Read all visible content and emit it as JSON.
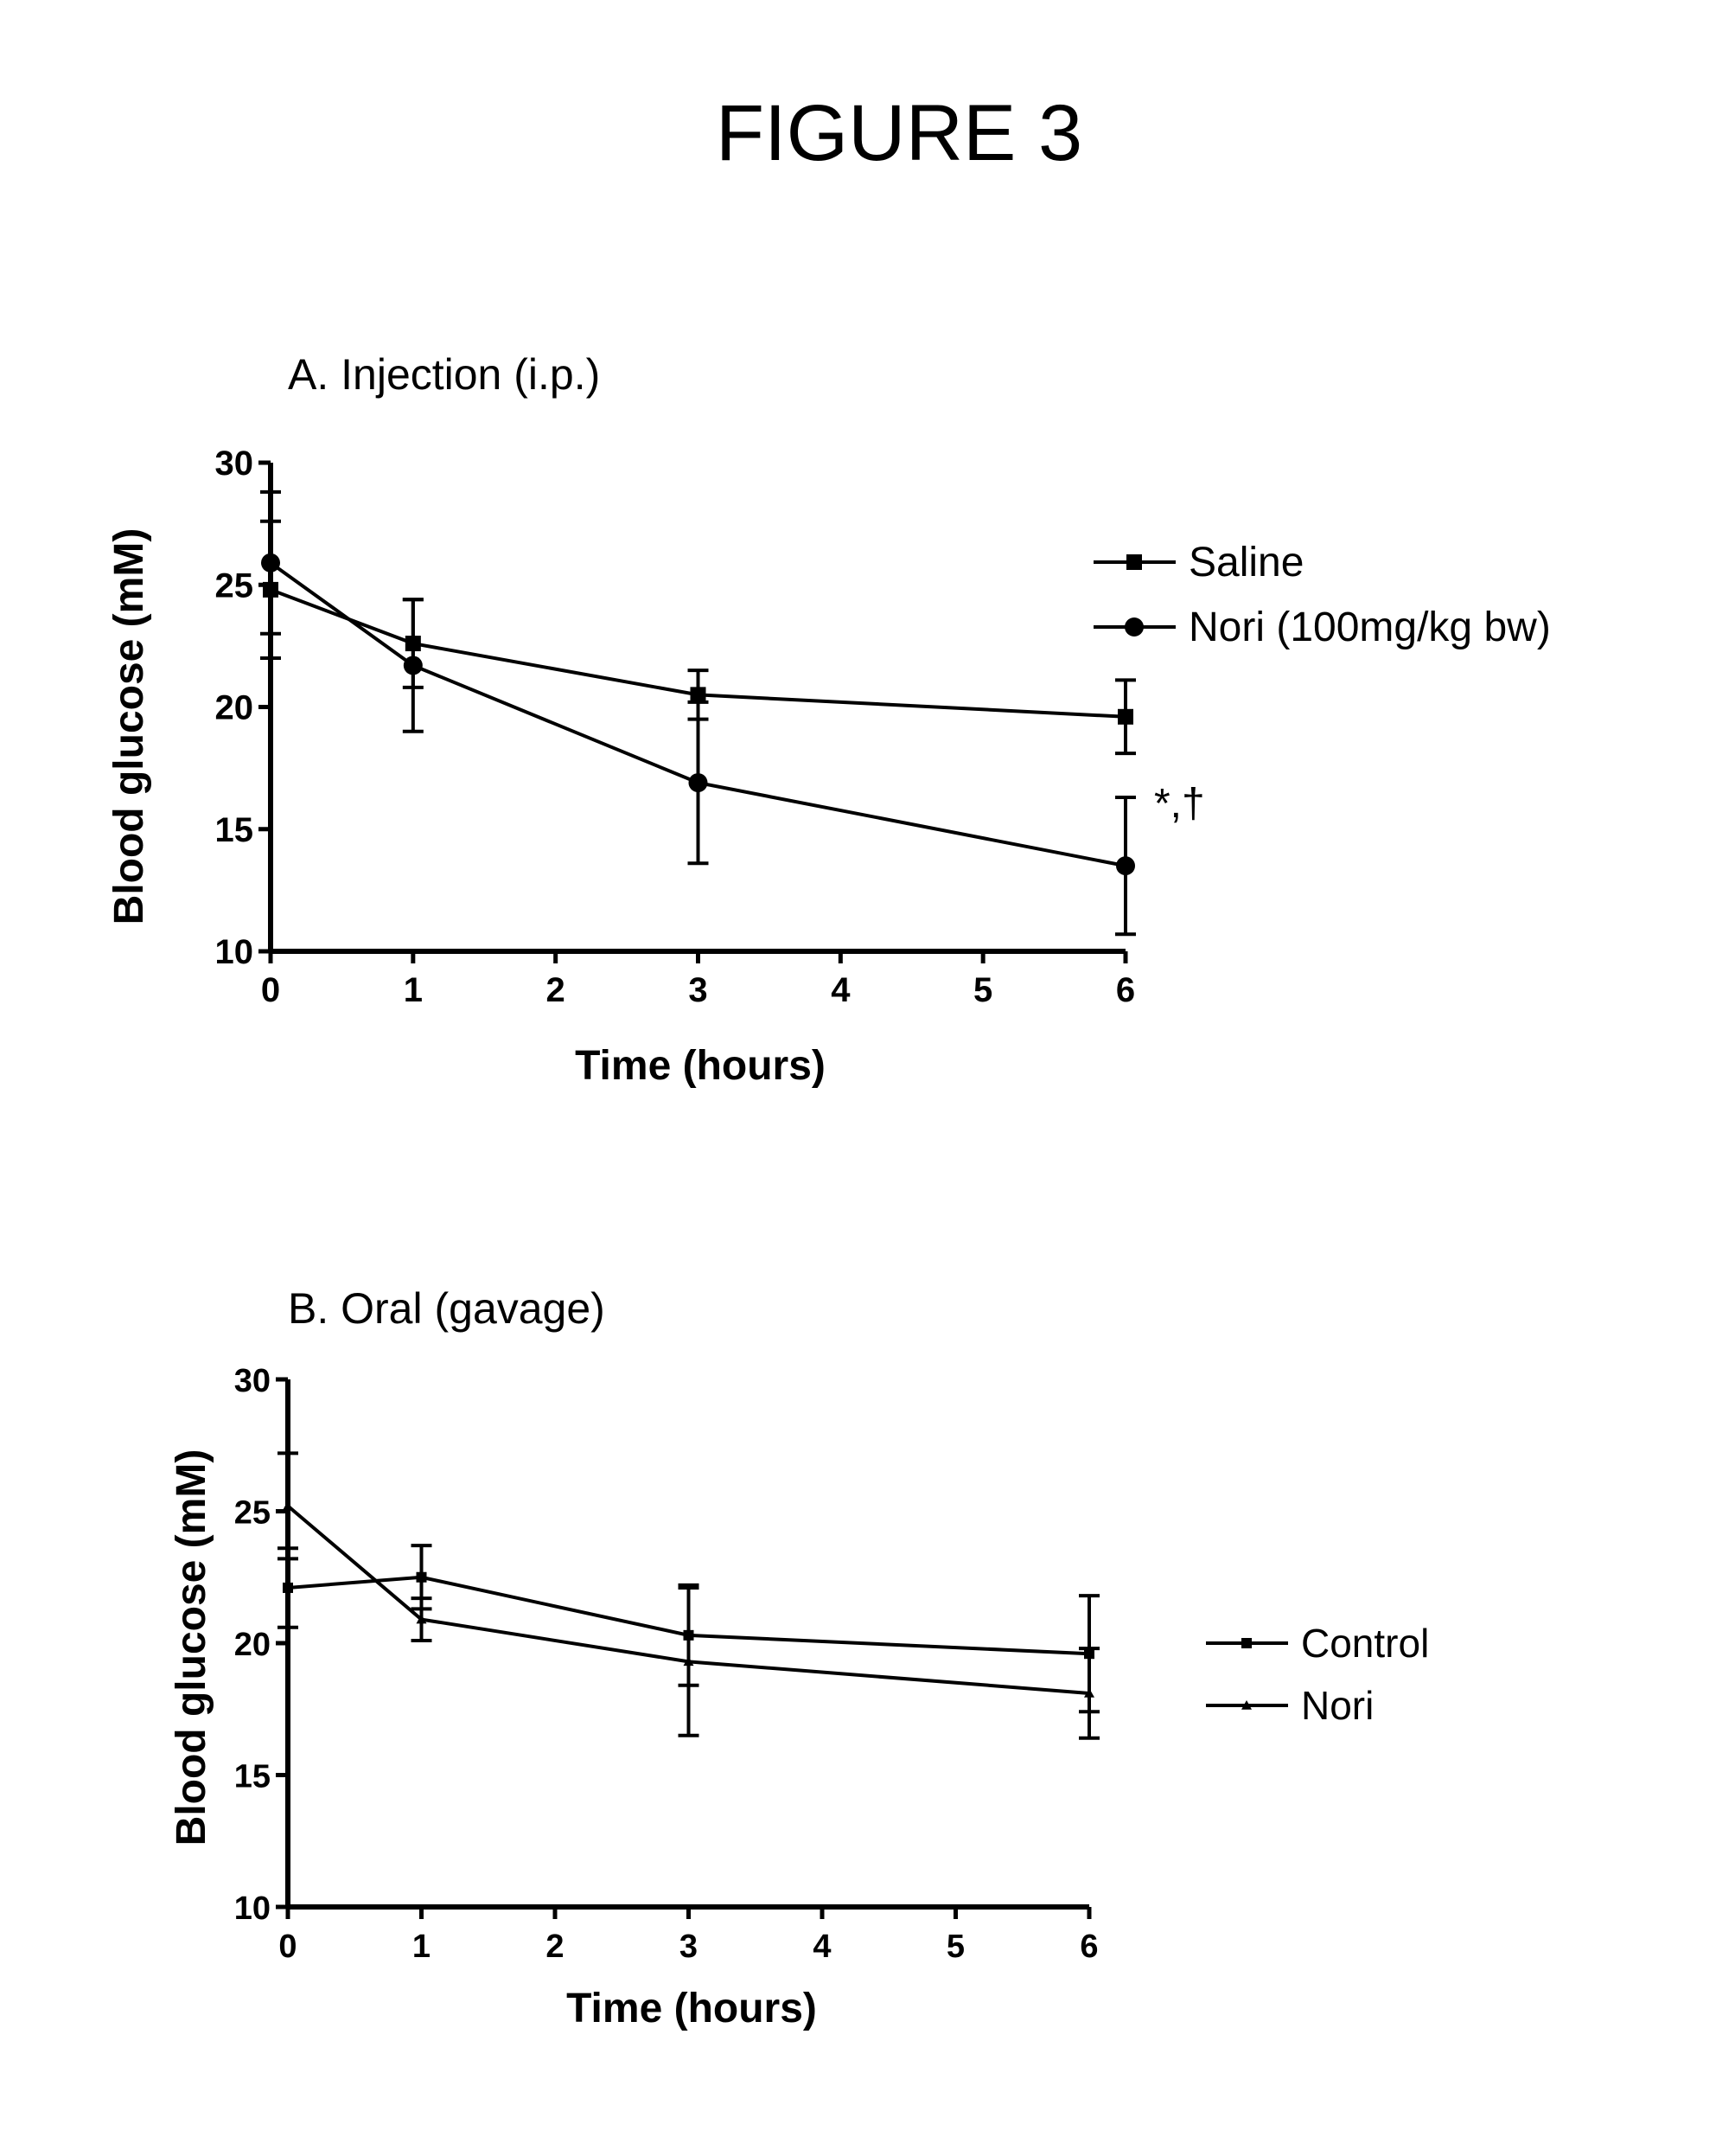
{
  "figure_title": "FIGURE 3",
  "chart_data": [
    {
      "type": "line",
      "title": "A.  Injection (i.p.)",
      "xlabel": "Time (hours)",
      "ylabel": "Blood glucose (mM)",
      "xlim": [
        0,
        6
      ],
      "ylim": [
        10,
        30
      ],
      "xticks": [
        "0",
        "1",
        "2",
        "3",
        "4",
        "5",
        "6"
      ],
      "yticks": [
        "10",
        "15",
        "20",
        "25",
        "30"
      ],
      "grid": false,
      "legend_position": "top-right",
      "annotation": {
        "text": "*,†",
        "x": 6,
        "y": 16.3
      },
      "series": [
        {
          "name": "Saline",
          "marker": "square",
          "x": [
            0,
            1,
            3,
            6
          ],
          "y": [
            24.8,
            22.6,
            20.5,
            19.6
          ],
          "err": [
            2.8,
            1.8,
            1.0,
            1.5
          ]
        },
        {
          "name": "Nori (100mg/kg bw)",
          "marker": "circle",
          "x": [
            0,
            1,
            3,
            6
          ],
          "y": [
            25.9,
            21.7,
            16.9,
            13.5
          ],
          "err": [
            2.9,
            2.7,
            3.3,
            2.8
          ]
        }
      ]
    },
    {
      "type": "line",
      "title": "B. Oral (gavage)",
      "xlabel": "Time (hours)",
      "ylabel": "Blood glucose (mM)",
      "xlim": [
        0,
        6
      ],
      "ylim": [
        10,
        30
      ],
      "xticks": [
        "0",
        "1",
        "2",
        "3",
        "4",
        "5",
        "6"
      ],
      "yticks": [
        "10",
        "15",
        "20",
        "25",
        "30"
      ],
      "grid": false,
      "legend_position": "right",
      "series": [
        {
          "name": "Control",
          "marker": "square",
          "x": [
            0,
            1,
            3,
            6
          ],
          "y": [
            22.1,
            22.5,
            20.3,
            19.6
          ],
          "err": [
            1.5,
            1.2,
            1.9,
            2.2
          ]
        },
        {
          "name": "Nori",
          "marker": "triangle",
          "x": [
            0,
            1,
            3,
            6
          ],
          "y": [
            25.2,
            20.9,
            19.3,
            18.1
          ],
          "err": [
            2.0,
            0.8,
            2.8,
            1.7
          ]
        }
      ]
    }
  ]
}
